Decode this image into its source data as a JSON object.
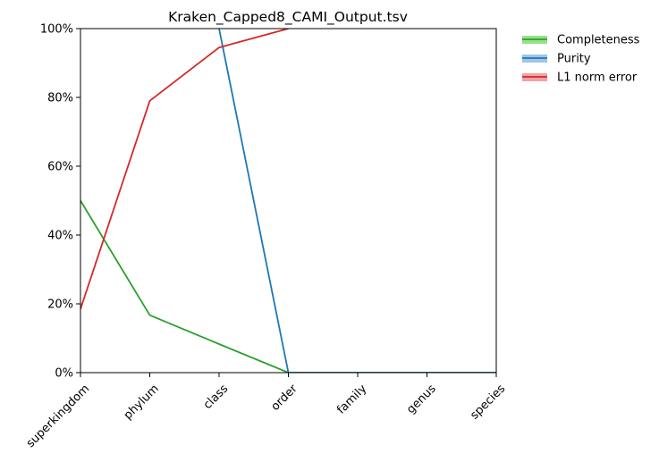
{
  "chart_data": {
    "type": "line",
    "title": "Kraken_Capped8_CAMI_Output.tsv",
    "categories": [
      "superkingdom",
      "phylum",
      "class",
      "order",
      "family",
      "genus",
      "species"
    ],
    "ylim": [
      0,
      100
    ],
    "y_ticks": [
      "0%",
      "20%",
      "40%",
      "60%",
      "80%",
      "100%"
    ],
    "y_tick_values": [
      0,
      20,
      40,
      60,
      80,
      100
    ],
    "grid": false,
    "legend_placement": "outside-top-right",
    "series": [
      {
        "name": "Completeness",
        "color": "#2ca02c",
        "band_color": "#98df8a",
        "values": [
          50,
          16.7,
          8.3,
          0,
          0,
          0,
          0
        ]
      },
      {
        "name": "Purity",
        "color": "#1f77b4",
        "band_color": "#9ec5e5",
        "values": [
          null,
          null,
          100,
          0,
          0,
          0,
          0
        ]
      },
      {
        "name": "L1 norm error",
        "color": "#d62728",
        "band_color": "#f0a3a3",
        "values": [
          18.5,
          79,
          94.5,
          100,
          null,
          null,
          null
        ]
      }
    ]
  }
}
